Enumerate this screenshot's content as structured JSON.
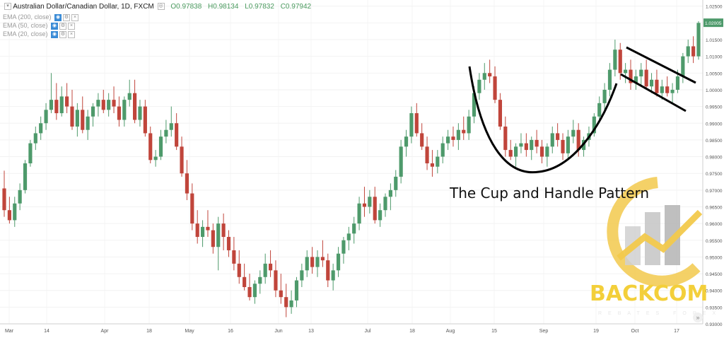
{
  "header": {
    "symbol": "Australian Dollar/Canadian Dollar, 1D, FXCM",
    "open": "O0.97838",
    "high": "H0.98134",
    "low": "L0.97832",
    "close": "C0.97942"
  },
  "indicators": [
    {
      "label": "EMA (200, close)"
    },
    {
      "label": "EMA (50, close)"
    },
    {
      "label": "EMA (20, close)"
    }
  ],
  "annotation": "The Cup and Handle Pattern",
  "watermark": {
    "name": "BACKCOM",
    "sub": "REBATES FOREX"
  },
  "colors": {
    "up": "#4e9a6b",
    "down": "#c0453b",
    "cup": "#000000",
    "last_price_bg": "#4e9a6b"
  },
  "chart_data": {
    "type": "candlestick",
    "title": "Australian Dollar/Canadian Dollar, 1D, FXCM",
    "ylim": [
      0.93,
      1.026
    ],
    "y_ticks": [
      "1.02500",
      "1.02000",
      "1.01500",
      "1.01000",
      "1.00500",
      "1.00000",
      "0.99500",
      "0.99000",
      "0.98500",
      "0.98000",
      "0.97500",
      "0.97000",
      "0.96500",
      "0.96000",
      "0.95500",
      "0.95000",
      "0.94500",
      "0.94000",
      "0.93500",
      "0.93000"
    ],
    "x_ticks": [
      "Mar",
      "14",
      "Apr",
      "18",
      "May",
      "16",
      "Jun",
      "13",
      "Jul",
      "18",
      "Aug",
      "15",
      "Sep",
      "19",
      "Oct",
      "17"
    ],
    "last_price": "1.02005",
    "candles": [
      [
        0.9705,
        0.9758,
        0.962,
        0.964
      ],
      [
        0.964,
        0.968,
        0.96,
        0.961
      ],
      [
        0.961,
        0.968,
        0.959,
        0.966
      ],
      [
        0.966,
        0.972,
        0.964,
        0.97
      ],
      [
        0.97,
        0.979,
        0.969,
        0.978
      ],
      [
        0.978,
        0.985,
        0.977,
        0.984
      ],
      [
        0.984,
        0.989,
        0.982,
        0.987
      ],
      [
        0.987,
        0.992,
        0.985,
        0.99
      ],
      [
        0.99,
        0.996,
        0.988,
        0.994
      ],
      [
        0.994,
        1.005,
        0.993,
        0.997
      ],
      [
        0.997,
        1.002,
        0.991,
        0.993
      ],
      [
        0.993,
        1.001,
        0.992,
        0.998
      ],
      [
        0.998,
        1.002,
        0.993,
        0.995
      ],
      [
        0.995,
        1.0,
        0.988,
        0.989
      ],
      [
        0.989,
        0.996,
        0.986,
        0.994
      ],
      [
        0.994,
        0.998,
        0.987,
        0.988
      ],
      [
        0.988,
        0.994,
        0.985,
        0.992
      ],
      [
        0.992,
        0.996,
        0.989,
        0.995
      ],
      [
        0.995,
        0.999,
        0.992,
        0.997
      ],
      [
        0.997,
        1.0,
        0.993,
        0.994
      ],
      [
        0.994,
        0.999,
        0.992,
        0.997
      ],
      [
        0.997,
        1.001,
        0.993,
        0.995
      ],
      [
        0.995,
        0.998,
        0.989,
        0.991
      ],
      [
        0.991,
        0.998,
        0.989,
        0.997
      ],
      [
        0.997,
        1.003,
        0.995,
        0.999
      ],
      [
        0.999,
        1.003,
        0.99,
        0.991
      ],
      [
        0.991,
        0.997,
        0.989,
        0.995
      ],
      [
        0.995,
        0.997,
        0.986,
        0.987
      ],
      [
        0.987,
        0.989,
        0.978,
        0.979
      ],
      [
        0.979,
        0.982,
        0.977,
        0.98
      ],
      [
        0.98,
        0.988,
        0.979,
        0.986
      ],
      [
        0.986,
        0.991,
        0.984,
        0.988
      ],
      [
        0.988,
        0.995,
        0.986,
        0.99
      ],
      [
        0.99,
        0.993,
        0.982,
        0.983
      ],
      [
        0.983,
        0.986,
        0.974,
        0.975
      ],
      [
        0.975,
        0.979,
        0.967,
        0.969
      ],
      [
        0.969,
        0.972,
        0.958,
        0.96
      ],
      [
        0.96,
        0.964,
        0.954,
        0.956
      ],
      [
        0.956,
        0.961,
        0.953,
        0.959
      ],
      [
        0.959,
        0.964,
        0.956,
        0.958
      ],
      [
        0.958,
        0.96,
        0.951,
        0.953
      ],
      [
        0.953,
        0.962,
        0.946,
        0.96
      ],
      [
        0.96,
        0.963,
        0.952,
        0.956
      ],
      [
        0.956,
        0.958,
        0.95,
        0.952
      ],
      [
        0.952,
        0.956,
        0.946,
        0.948
      ],
      [
        0.948,
        0.952,
        0.942,
        0.944
      ],
      [
        0.944,
        0.948,
        0.94,
        0.941
      ],
      [
        0.941,
        0.945,
        0.937,
        0.938
      ],
      [
        0.938,
        0.943,
        0.936,
        0.942
      ],
      [
        0.942,
        0.946,
        0.939,
        0.944
      ],
      [
        0.944,
        0.951,
        0.942,
        0.948
      ],
      [
        0.948,
        0.952,
        0.944,
        0.946
      ],
      [
        0.946,
        0.949,
        0.938,
        0.94
      ],
      [
        0.94,
        0.945,
        0.936,
        0.938
      ],
      [
        0.938,
        0.942,
        0.932,
        0.935
      ],
      [
        0.935,
        0.94,
        0.933,
        0.937
      ],
      [
        0.937,
        0.944,
        0.935,
        0.943
      ],
      [
        0.943,
        0.948,
        0.941,
        0.946
      ],
      [
        0.946,
        0.952,
        0.944,
        0.95
      ],
      [
        0.95,
        0.953,
        0.945,
        0.947
      ],
      [
        0.947,
        0.952,
        0.944,
        0.95
      ],
      [
        0.95,
        0.955,
        0.947,
        0.949
      ],
      [
        0.949,
        0.951,
        0.941,
        0.943
      ],
      [
        0.943,
        0.948,
        0.94,
        0.946
      ],
      [
        0.946,
        0.953,
        0.944,
        0.951
      ],
      [
        0.951,
        0.956,
        0.948,
        0.955
      ],
      [
        0.955,
        0.959,
        0.952,
        0.957
      ],
      [
        0.957,
        0.962,
        0.954,
        0.96
      ],
      [
        0.96,
        0.968,
        0.958,
        0.966
      ],
      [
        0.966,
        0.971,
        0.962,
        0.965
      ],
      [
        0.965,
        0.97,
        0.963,
        0.968
      ],
      [
        0.968,
        0.971,
        0.96,
        0.961
      ],
      [
        0.961,
        0.966,
        0.959,
        0.964
      ],
      [
        0.964,
        0.969,
        0.962,
        0.968
      ],
      [
        0.968,
        0.972,
        0.964,
        0.97
      ],
      [
        0.97,
        0.976,
        0.968,
        0.974
      ],
      [
        0.974,
        0.985,
        0.972,
        0.983
      ],
      [
        0.983,
        0.988,
        0.98,
        0.986
      ],
      [
        0.986,
        0.995,
        0.984,
        0.993
      ],
      [
        0.993,
        0.996,
        0.986,
        0.987
      ],
      [
        0.987,
        0.99,
        0.982,
        0.983
      ],
      [
        0.983,
        0.986,
        0.976,
        0.978
      ],
      [
        0.978,
        0.982,
        0.974,
        0.977
      ],
      [
        0.977,
        0.982,
        0.975,
        0.98
      ],
      [
        0.98,
        0.986,
        0.978,
        0.984
      ],
      [
        0.984,
        0.988,
        0.982,
        0.986
      ],
      [
        0.986,
        0.989,
        0.983,
        0.985
      ],
      [
        0.985,
        0.99,
        0.982,
        0.988
      ],
      [
        0.988,
        0.992,
        0.985,
        0.987
      ],
      [
        0.987,
        0.994,
        0.985,
        0.992
      ],
      [
        0.992,
        1.001,
        0.99,
        0.999
      ],
      [
        0.999,
        1.005,
        0.997,
        1.003
      ],
      [
        1.003,
        1.008,
        1.0,
        1.005
      ],
      [
        1.005,
        1.009,
        1.002,
        1.004
      ],
      [
        1.004,
        1.007,
        0.996,
        0.997
      ],
      [
        0.997,
        0.999,
        0.988,
        0.989
      ],
      [
        0.989,
        0.992,
        0.98,
        0.982
      ],
      [
        0.982,
        0.985,
        0.979,
        0.98
      ],
      [
        0.98,
        0.984,
        0.977,
        0.983
      ],
      [
        0.983,
        0.987,
        0.981,
        0.984
      ],
      [
        0.984,
        0.987,
        0.98,
        0.982
      ],
      [
        0.982,
        0.986,
        0.979,
        0.985
      ],
      [
        0.985,
        0.988,
        0.981,
        0.983
      ],
      [
        0.983,
        0.985,
        0.978,
        0.98
      ],
      [
        0.98,
        0.984,
        0.977,
        0.983
      ],
      [
        0.983,
        0.989,
        0.981,
        0.987
      ],
      [
        0.987,
        0.99,
        0.983,
        0.985
      ],
      [
        0.985,
        0.987,
        0.979,
        0.981
      ],
      [
        0.981,
        0.988,
        0.979,
        0.986
      ],
      [
        0.986,
        0.991,
        0.984,
        0.988
      ],
      [
        0.988,
        0.99,
        0.98,
        0.982
      ],
      [
        0.982,
        0.986,
        0.98,
        0.985
      ],
      [
        0.985,
        0.989,
        0.983,
        0.987
      ],
      [
        0.987,
        0.993,
        0.986,
        0.992
      ],
      [
        0.992,
        0.998,
        0.99,
        0.996
      ],
      [
        0.996,
        1.002,
        0.994,
        1.0
      ],
      [
        1.0,
        1.008,
        0.998,
        1.006
      ],
      [
        1.006,
        1.015,
        1.004,
        1.012
      ],
      [
        1.012,
        1.014,
        1.003,
        1.005
      ],
      [
        1.005,
        1.008,
        1.002,
        1.006
      ],
      [
        1.006,
        1.009,
        1.0,
        1.002
      ],
      [
        1.002,
        1.006,
        1.0,
        1.004
      ],
      [
        1.004,
        1.008,
        1.001,
        1.006
      ],
      [
        1.006,
        1.009,
        1.0,
        1.001
      ],
      [
        1.001,
        1.005,
        0.999,
        1.003
      ],
      [
        1.003,
        1.006,
        0.998,
        0.999
      ],
      [
        0.999,
        1.003,
        0.997,
        1.001
      ],
      [
        1.001,
        1.004,
        0.998,
        0.999
      ],
      [
        0.999,
        1.002,
        0.996,
        1.0
      ],
      [
        1.0,
        1.006,
        0.999,
        1.004
      ],
      [
        1.004,
        1.011,
        1.002,
        1.01
      ],
      [
        1.01,
        1.015,
        1.008,
        1.013
      ],
      [
        1.013,
        1.016,
        1.008,
        1.01
      ],
      [
        1.01,
        1.0205,
        1.009,
        1.02
      ]
    ]
  }
}
